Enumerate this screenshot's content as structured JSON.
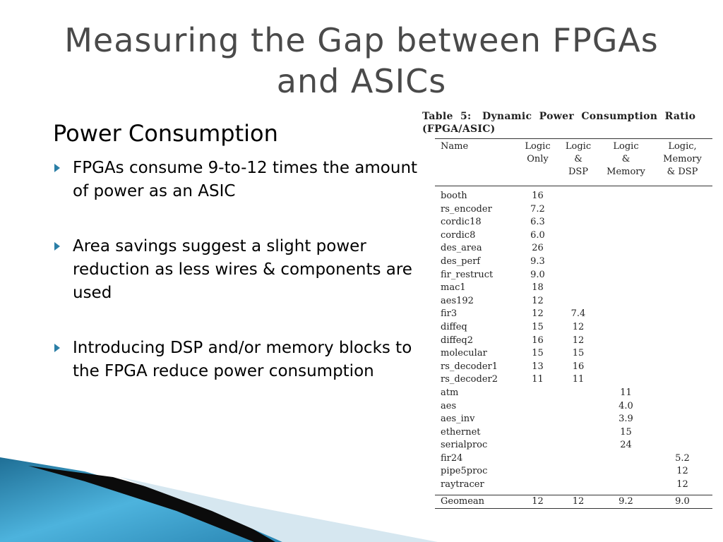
{
  "slide": {
    "title_line1": "Measuring the Gap between FPGAs",
    "title_line2": "and ASICs",
    "subtitle": "Power Consumption",
    "bullets": [
      "FPGAs consume 9-to-12 times the amount of power as an ASIC",
      "Area savings suggest a slight power reduction as less wires & components are used",
      "Introducing DSP and/or memory blocks to the FPGA reduce power consumption"
    ],
    "colors": {
      "title": "#4a4a4a",
      "bullet": "#2a7ea6",
      "accent_blue": "#3a9fcf"
    }
  },
  "table": {
    "caption_line1": "Table  5:   Dynamic  Power  Consumption  Ratio",
    "caption_line2": "(FPGA/ASIC)",
    "headers": [
      [
        "Name"
      ],
      [
        "Logic",
        "Only"
      ],
      [
        "Logic",
        "&",
        "DSP"
      ],
      [
        "Logic",
        "&",
        "Memory"
      ],
      [
        "Logic,",
        "Memory",
        "& DSP"
      ]
    ],
    "rows": [
      [
        "booth",
        "16",
        "",
        "",
        ""
      ],
      [
        "rs_encoder",
        "7.2",
        "",
        "",
        ""
      ],
      [
        "cordic18",
        "6.3",
        "",
        "",
        ""
      ],
      [
        "cordic8",
        "6.0",
        "",
        "",
        ""
      ],
      [
        "des_area",
        "26",
        "",
        "",
        ""
      ],
      [
        "des_perf",
        "9.3",
        "",
        "",
        ""
      ],
      [
        "fir_restruct",
        "9.0",
        "",
        "",
        ""
      ],
      [
        "mac1",
        "18",
        "",
        "",
        ""
      ],
      [
        "aes192",
        "12",
        "",
        "",
        ""
      ],
      [
        "fir3",
        "12",
        "7.4",
        "",
        ""
      ],
      [
        "diffeq",
        "15",
        "12",
        "",
        ""
      ],
      [
        "diffeq2",
        "16",
        "12",
        "",
        ""
      ],
      [
        "molecular",
        "15",
        "15",
        "",
        ""
      ],
      [
        "rs_decoder1",
        "13",
        "16",
        "",
        ""
      ],
      [
        "rs_decoder2",
        "11",
        "11",
        "",
        ""
      ],
      [
        "atm",
        "",
        "",
        "11",
        ""
      ],
      [
        "aes",
        "",
        "",
        "4.0",
        ""
      ],
      [
        "aes_inv",
        "",
        "",
        "3.9",
        ""
      ],
      [
        "ethernet",
        "",
        "",
        "15",
        ""
      ],
      [
        "serialproc",
        "",
        "",
        "24",
        ""
      ],
      [
        "fir24",
        "",
        "",
        "",
        "5.2"
      ],
      [
        "pipe5proc",
        "",
        "",
        "",
        "12"
      ],
      [
        "raytracer",
        "",
        "",
        "",
        "12"
      ]
    ],
    "footer": [
      "Geomean",
      "12",
      "12",
      "9.2",
      "9.0"
    ]
  }
}
